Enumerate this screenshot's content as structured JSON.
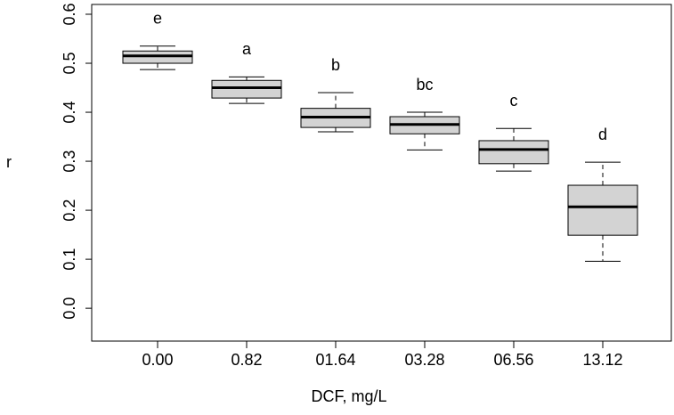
{
  "chart_data": {
    "type": "boxplot",
    "x_label": "DCF, mg/L",
    "y_label": "r",
    "categories": [
      "0.00",
      "0.82",
      "01.64",
      "03.28",
      "06.56",
      "13.12"
    ],
    "min": [
      0.487,
      0.418,
      0.36,
      0.323,
      0.28,
      0.096
    ],
    "q1": [
      0.5,
      0.429,
      0.369,
      0.356,
      0.295,
      0.149
    ],
    "median": [
      0.515,
      0.45,
      0.39,
      0.375,
      0.324,
      0.207
    ],
    "q3": [
      0.525,
      0.465,
      0.408,
      0.391,
      0.342,
      0.251
    ],
    "max": [
      0.535,
      0.472,
      0.44,
      0.4,
      0.367,
      0.298
    ],
    "annotations": [
      "e",
      "a",
      "b",
      "bc",
      "c",
      "d"
    ],
    "color": "#d3d3d3",
    "ylim": [
      -0.067,
      0.62
    ],
    "yticks": [
      {
        "value": 0,
        "label": "0.0"
      },
      {
        "value": 0.1,
        "label": "0.1"
      },
      {
        "value": 0.2,
        "label": "0.2"
      },
      {
        "value": 0.3,
        "label": "0.3"
      },
      {
        "value": 0.4,
        "label": "0.4"
      },
      {
        "value": 0.5,
        "label": "0.5"
      },
      {
        "value": 0.6,
        "label": "0.6"
      }
    ]
  }
}
